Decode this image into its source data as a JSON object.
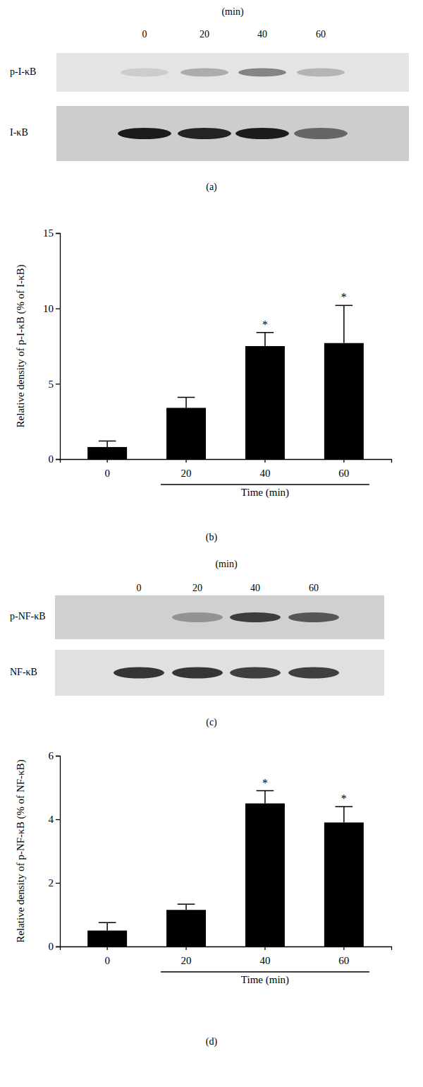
{
  "chart_data": [
    {
      "type": "bar",
      "label": "(b)",
      "categories": [
        "0",
        "20",
        "40",
        "60"
      ],
      "values": [
        0.8,
        3.4,
        7.5,
        7.7
      ],
      "errors": [
        0.4,
        0.7,
        0.9,
        2.5
      ],
      "significance": [
        null,
        null,
        "*",
        "*"
      ],
      "x_label": "Time (min)",
      "y_label": "Relative density of p-I-κB (% of I-κB)",
      "color": "#000000",
      "ylim": [
        0,
        15
      ],
      "yticks": [
        0,
        5,
        10,
        15
      ],
      "grid": false
    },
    {
      "type": "bar",
      "label": "(d)",
      "categories": [
        "0",
        "20",
        "40",
        "60"
      ],
      "values": [
        0.5,
        1.15,
        4.5,
        3.9
      ],
      "errors": [
        0.25,
        0.18,
        0.4,
        0.5
      ],
      "significance": [
        null,
        null,
        "*",
        "*"
      ],
      "x_label": "Time (min)",
      "y_label": "Relative density of p-NF-κB (% of NF-κB)",
      "color": "#000000",
      "ylim": [
        0,
        6
      ],
      "yticks": [
        0,
        2,
        4,
        6
      ],
      "grid": false
    }
  ],
  "blots": [
    {
      "label": "(a)",
      "unit_label": "(min)",
      "lanes": [
        "0",
        "20",
        "40",
        "60"
      ],
      "rows": [
        "p-I-κB",
        "I-κB"
      ]
    },
    {
      "label": "(c)",
      "unit_label": "(min)",
      "lanes": [
        "0",
        "20",
        "40",
        "60"
      ],
      "rows": [
        "p-NF-κB",
        "NF-κB"
      ]
    }
  ]
}
